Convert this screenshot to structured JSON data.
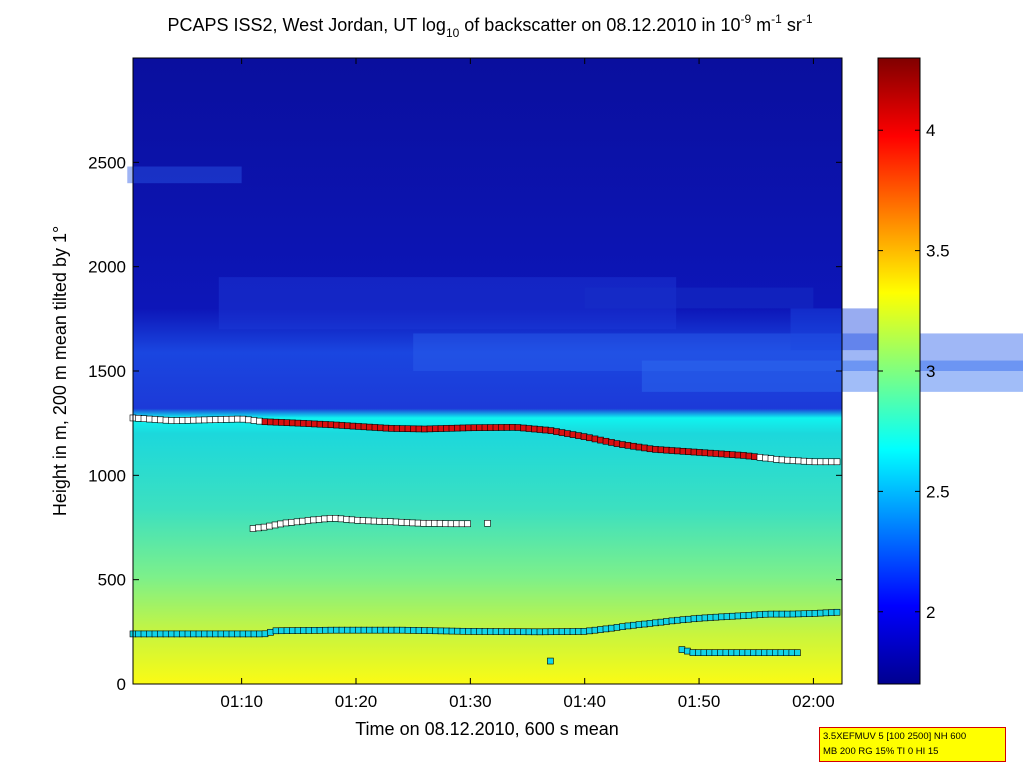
{
  "chart_data": {
    "type": "heatmap",
    "title_parts": {
      "a": "PCAPS ISS2, West Jordan, UT log",
      "sub_a": "10",
      "b": " of backscatter on 08.12.2010 in 10",
      "sup_b": "-9",
      "c": " m",
      "sup_c": "-1",
      "d": " sr",
      "sup_d": "-1"
    },
    "xlabel": "Time on 08.12.2010, 600 s mean",
    "ylabel": "Height in m, 200 m mean tilted by 1°",
    "xlim_minutes": [
      60.5,
      122.5
    ],
    "ylim": [
      0,
      3000
    ],
    "x_ticks": [
      {
        "value": 70,
        "label": "01:10"
      },
      {
        "value": 80,
        "label": "01:20"
      },
      {
        "value": 90,
        "label": "01:30"
      },
      {
        "value": 100,
        "label": "01:40"
      },
      {
        "value": 110,
        "label": "01:50"
      },
      {
        "value": 120,
        "label": "02:00"
      }
    ],
    "y_ticks": [
      {
        "value": 0,
        "label": "0"
      },
      {
        "value": 500,
        "label": "500"
      },
      {
        "value": 1000,
        "label": "1000"
      },
      {
        "value": 1500,
        "label": "1500"
      },
      {
        "value": 2000,
        "label": "2000"
      },
      {
        "value": 2500,
        "label": "2500"
      }
    ],
    "colorbar": {
      "range": [
        1.7,
        4.3
      ],
      "ticks": [
        {
          "value": 2,
          "label": "2"
        },
        {
          "value": 2.5,
          "label": "2.5"
        },
        {
          "value": 3,
          "label": "3"
        },
        {
          "value": 3.5,
          "label": "3.5"
        },
        {
          "value": 4,
          "label": "4"
        }
      ],
      "colormap": "jet"
    },
    "markers": [
      {
        "name": "upper layer",
        "style": "white/red squares",
        "x": [
          60.5,
          64,
          70,
          72,
          75,
          78,
          80,
          83,
          86,
          90,
          94,
          97,
          100,
          103,
          106,
          110,
          114,
          117,
          120,
          122.5
        ],
        "y": [
          1275,
          1262,
          1270,
          1257,
          1250,
          1242,
          1235,
          1225,
          1222,
          1228,
          1230,
          1215,
          1185,
          1150,
          1125,
          1110,
          1095,
          1075,
          1065,
          1065
        ],
        "red_x_range": [
          72,
          115
        ]
      },
      {
        "name": "middle layer",
        "style": "white squares",
        "x": [
          71,
          72,
          73,
          74,
          75,
          76,
          77,
          78,
          79,
          80,
          81,
          82,
          83,
          84,
          85,
          86,
          87,
          88,
          89,
          90
        ],
        "y": [
          745,
          752,
          763,
          773,
          778,
          785,
          790,
          795,
          790,
          785,
          782,
          780,
          778,
          775,
          772,
          770,
          770,
          768,
          768,
          768
        ],
        "isolated": {
          "x": 91.5,
          "y": 770
        }
      },
      {
        "name": "lower layer",
        "style": "cyan squares",
        "x": [
          60.5,
          66,
          72,
          73,
          78,
          84,
          90,
          96,
          100,
          102,
          104,
          106,
          108,
          110,
          112,
          114,
          116,
          118,
          120,
          122.5
        ],
        "y": [
          240,
          240,
          240,
          255,
          258,
          258,
          252,
          250,
          252,
          265,
          280,
          292,
          305,
          315,
          322,
          328,
          335,
          335,
          338,
          345
        ]
      },
      {
        "name": "bottom segment",
        "style": "cyan squares",
        "x": [
          108.5,
          109.5,
          111,
          113,
          115,
          117,
          119
        ],
        "y": [
          165,
          150,
          150,
          150,
          150,
          150,
          150
        ],
        "isolated": {
          "x": 97,
          "y": 110
        }
      }
    ]
  },
  "info_box": {
    "line1": "3.5XEFMUV 5 [100 2500] NH 600",
    "line2": "MB 200 RG 15% TI 0 HI 15"
  }
}
